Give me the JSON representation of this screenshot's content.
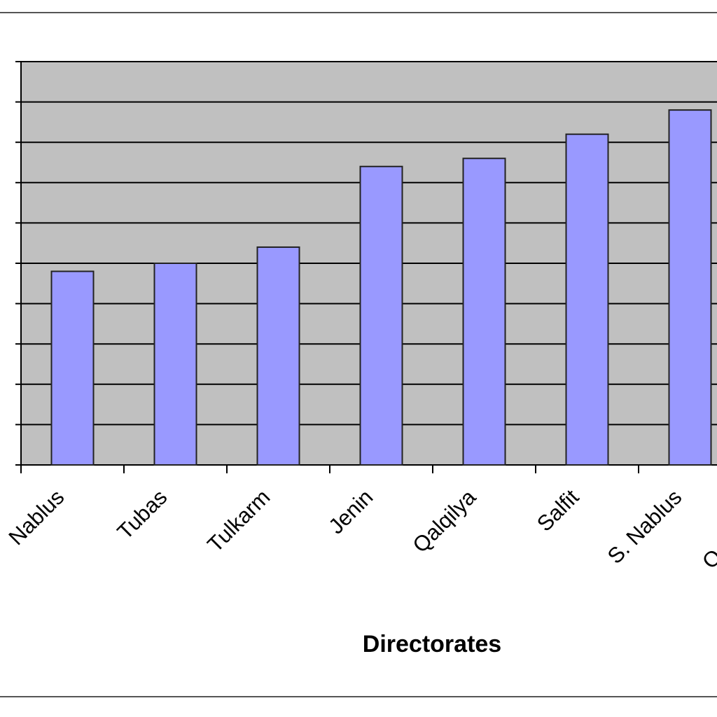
{
  "chart_data": {
    "type": "bar",
    "x_label": "Directorates",
    "categories": [
      "Nablus",
      "Tubas",
      "Tulkarm",
      "Jenin",
      "Qalqilya",
      "Salfit",
      "S. Nablus",
      "Qa"
    ],
    "values": [
      4.8,
      5.0,
      5.4,
      7.4,
      7.6,
      8.2,
      8.8,
      null
    ],
    "color": "#9999ff",
    "ylim": [
      0,
      10
    ],
    "yticks": [
      0,
      1,
      2,
      3,
      4,
      5,
      6,
      7,
      8,
      9,
      10
    ],
    "grid": true
  }
}
